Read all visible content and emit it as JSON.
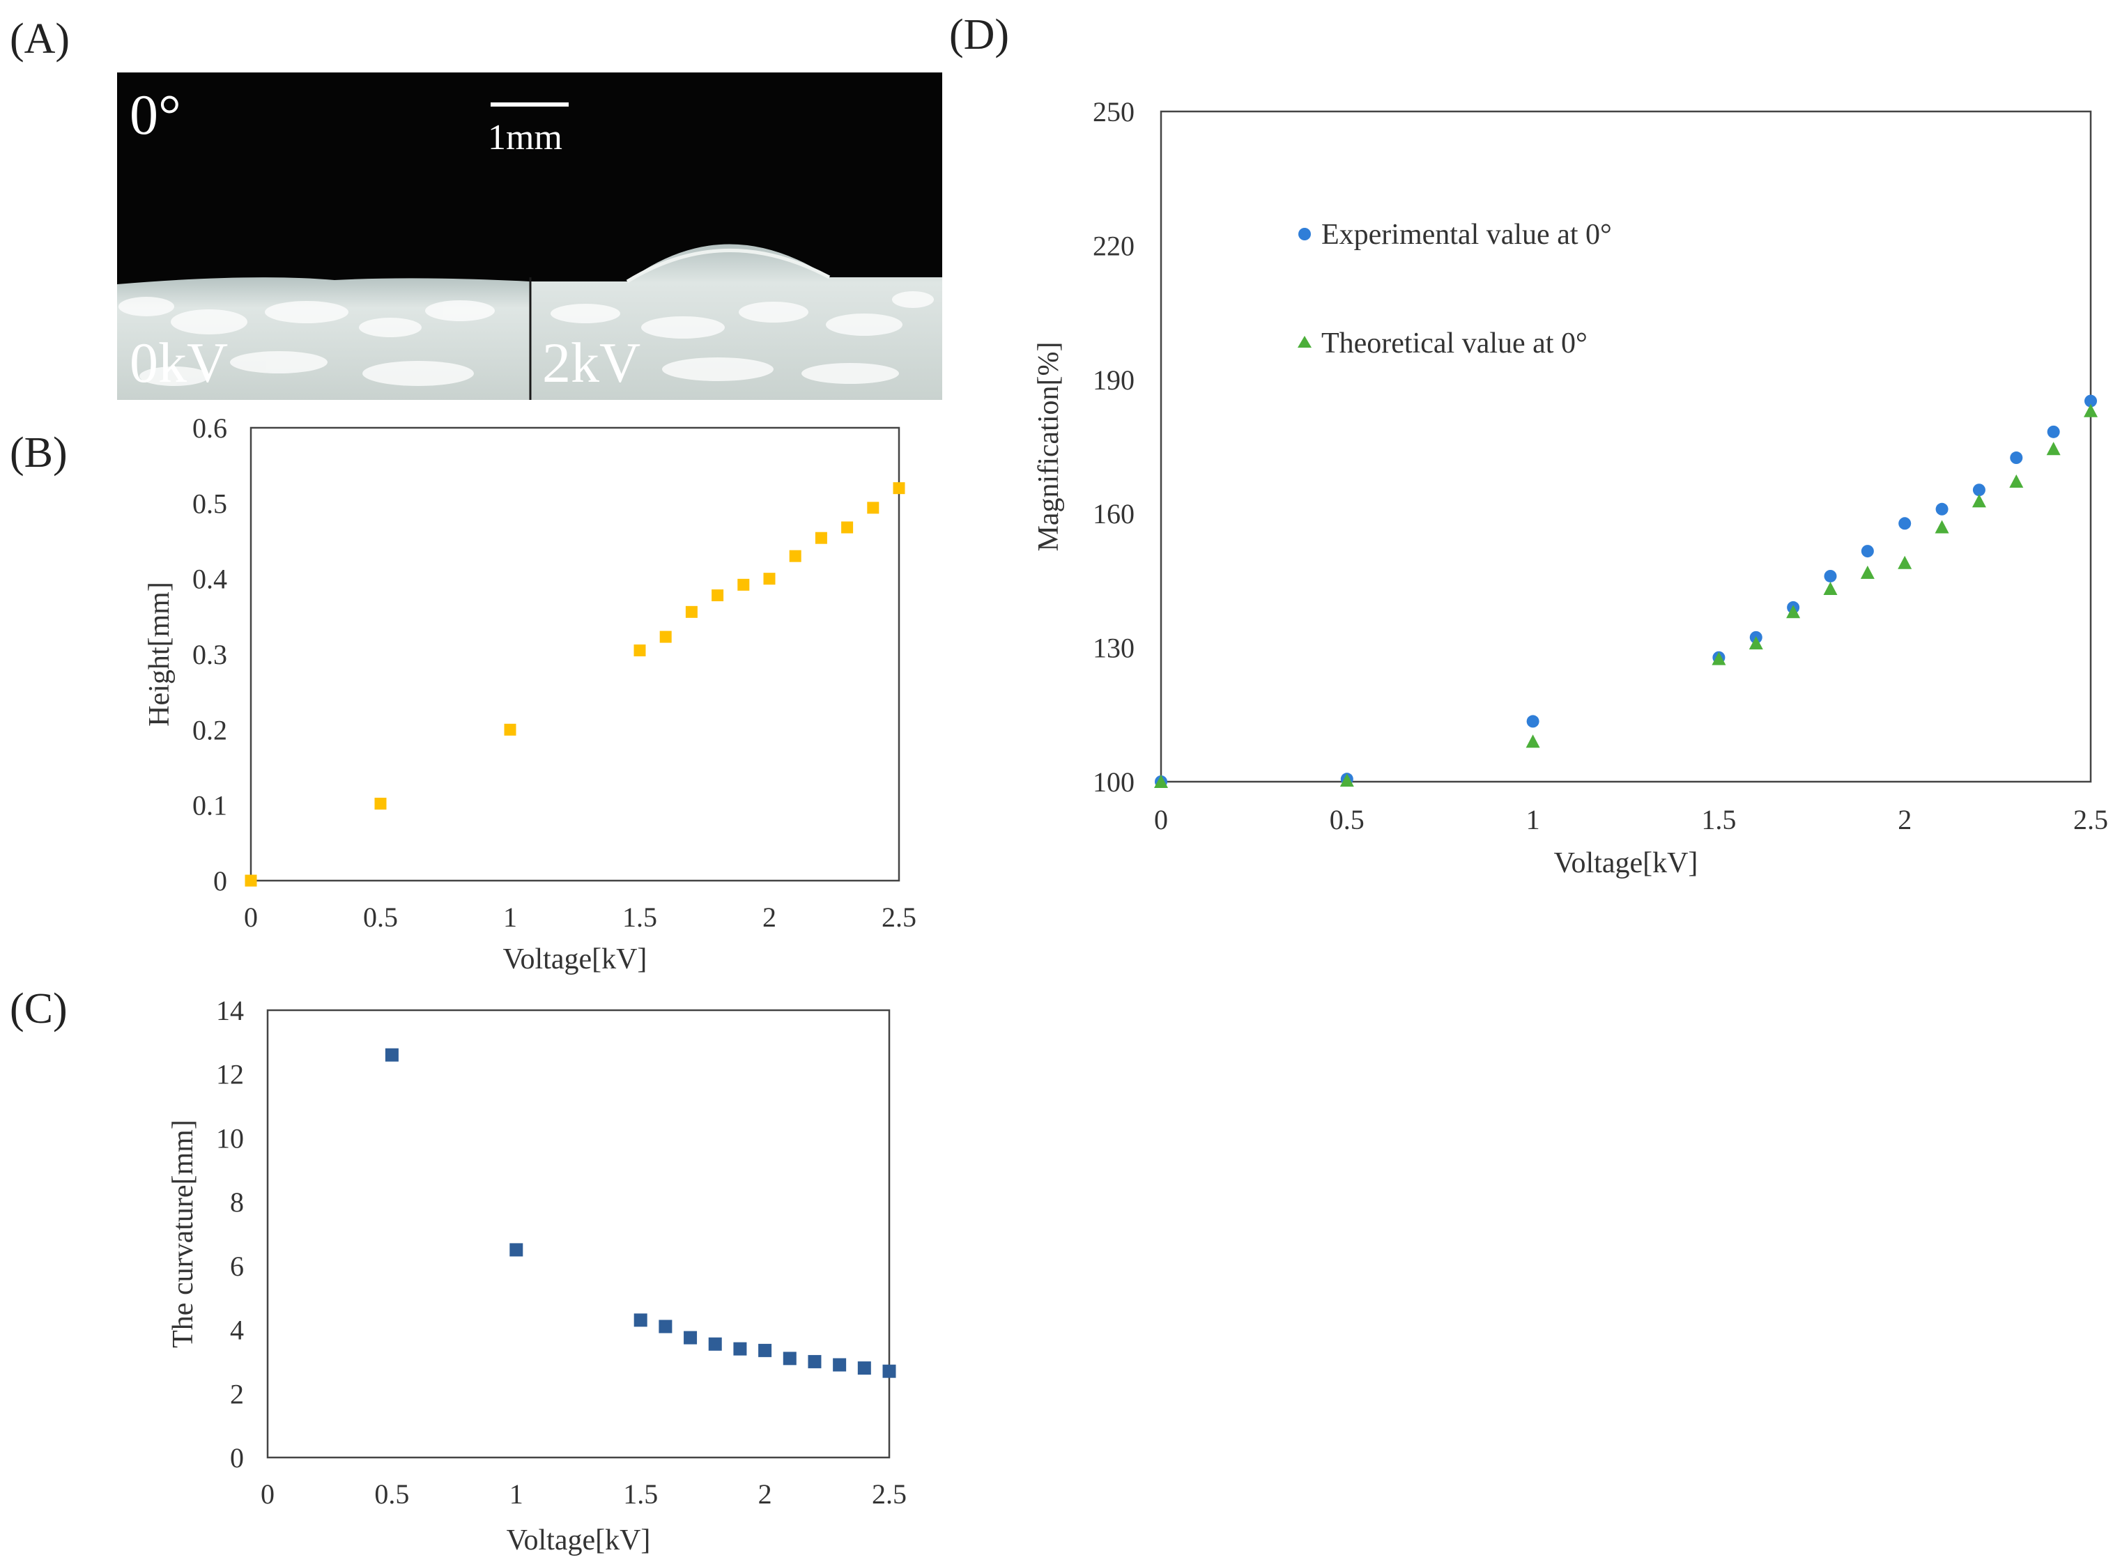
{
  "panels": {
    "A": {
      "label": "(A)",
      "angle_label": "0°",
      "scale_bar_label": "1mm",
      "left_label": "0kV",
      "right_label": "2kV"
    },
    "B": {
      "label": "(B)"
    },
    "C": {
      "label": "(C)"
    },
    "D": {
      "label": "(D)"
    }
  },
  "colors": {
    "height": "#FFC000",
    "curvature": "#2E5D97",
    "experimental": "#2F7ED8",
    "theoretical": "#4CAF3A",
    "axis": "#444444"
  },
  "chart_data": [
    {
      "id": "B",
      "type": "scatter",
      "title": "",
      "xlabel": "Voltage[kV]",
      "ylabel": "Height[mm]",
      "xlim": [
        0,
        2.5
      ],
      "ylim": [
        0,
        0.6
      ],
      "xticks": [
        "0",
        "0.5",
        "1",
        "1.5",
        "2",
        "2.5"
      ],
      "yticks": [
        "0",
        "0.1",
        "0.2",
        "0.3",
        "0.4",
        "0.5",
        "0.6"
      ],
      "marker": "square",
      "series": [
        {
          "name": "Height",
          "x": [
            0,
            0.5,
            1,
            1.5,
            1.6,
            1.7,
            1.8,
            1.9,
            2.0,
            2.1,
            2.2,
            2.3,
            2.4,
            2.5
          ],
          "y": [
            0,
            0.102,
            0.2,
            0.305,
            0.323,
            0.356,
            0.378,
            0.392,
            0.4,
            0.43,
            0.454,
            0.468,
            0.494,
            0.52
          ]
        }
      ]
    },
    {
      "id": "C",
      "type": "scatter",
      "title": "",
      "xlabel": "Voltage[kV]",
      "ylabel": "The curvature[mm]",
      "xlim": [
        0,
        2.5
      ],
      "ylim": [
        0,
        14
      ],
      "xticks": [
        "0",
        "0.5",
        "1",
        "1.5",
        "2",
        "2.5"
      ],
      "yticks": [
        "0",
        "2",
        "4",
        "6",
        "8",
        "10",
        "12",
        "14"
      ],
      "marker": "square",
      "series": [
        {
          "name": "Curvature",
          "x": [
            0.5,
            1,
            1.5,
            1.6,
            1.7,
            1.8,
            1.9,
            2.0,
            2.1,
            2.2,
            2.3,
            2.4,
            2.5
          ],
          "y": [
            12.6,
            6.5,
            4.3,
            4.1,
            3.75,
            3.55,
            3.4,
            3.35,
            3.1,
            3.0,
            2.9,
            2.8,
            2.7
          ]
        }
      ]
    },
    {
      "id": "D",
      "type": "scatter",
      "title": "",
      "xlabel": "Voltage[kV]",
      "ylabel": "Magnification[%]",
      "xlim": [
        0,
        2.5
      ],
      "ylim": [
        100,
        250
      ],
      "xticks": [
        "0",
        "0.5",
        "1",
        "1.5",
        "2",
        "2.5"
      ],
      "yticks": [
        "100",
        "130",
        "160",
        "190",
        "220",
        "250"
      ],
      "legend_position": "upper-left",
      "series": [
        {
          "name": "Experimental value at 0°",
          "marker": "circle",
          "x": [
            0,
            0.5,
            1,
            1.5,
            1.6,
            1.7,
            1.8,
            1.9,
            2.0,
            2.1,
            2.2,
            2.3,
            2.4,
            2.5
          ],
          "y": [
            100,
            100.6,
            113.5,
            127.8,
            132.3,
            139,
            146,
            151.6,
            157.8,
            161,
            165.3,
            172.5,
            178.3,
            185.2
          ]
        },
        {
          "name": "Theoretical value at 0°",
          "marker": "triangle",
          "x": [
            0,
            0.5,
            1,
            1.5,
            1.6,
            1.7,
            1.8,
            1.9,
            2.0,
            2.1,
            2.2,
            2.3,
            2.4,
            2.5
          ],
          "y": [
            100,
            100.3,
            109,
            127.5,
            131,
            138,
            143.2,
            146.8,
            149,
            157,
            162.8,
            167.2,
            174.5,
            183
          ]
        }
      ]
    }
  ]
}
